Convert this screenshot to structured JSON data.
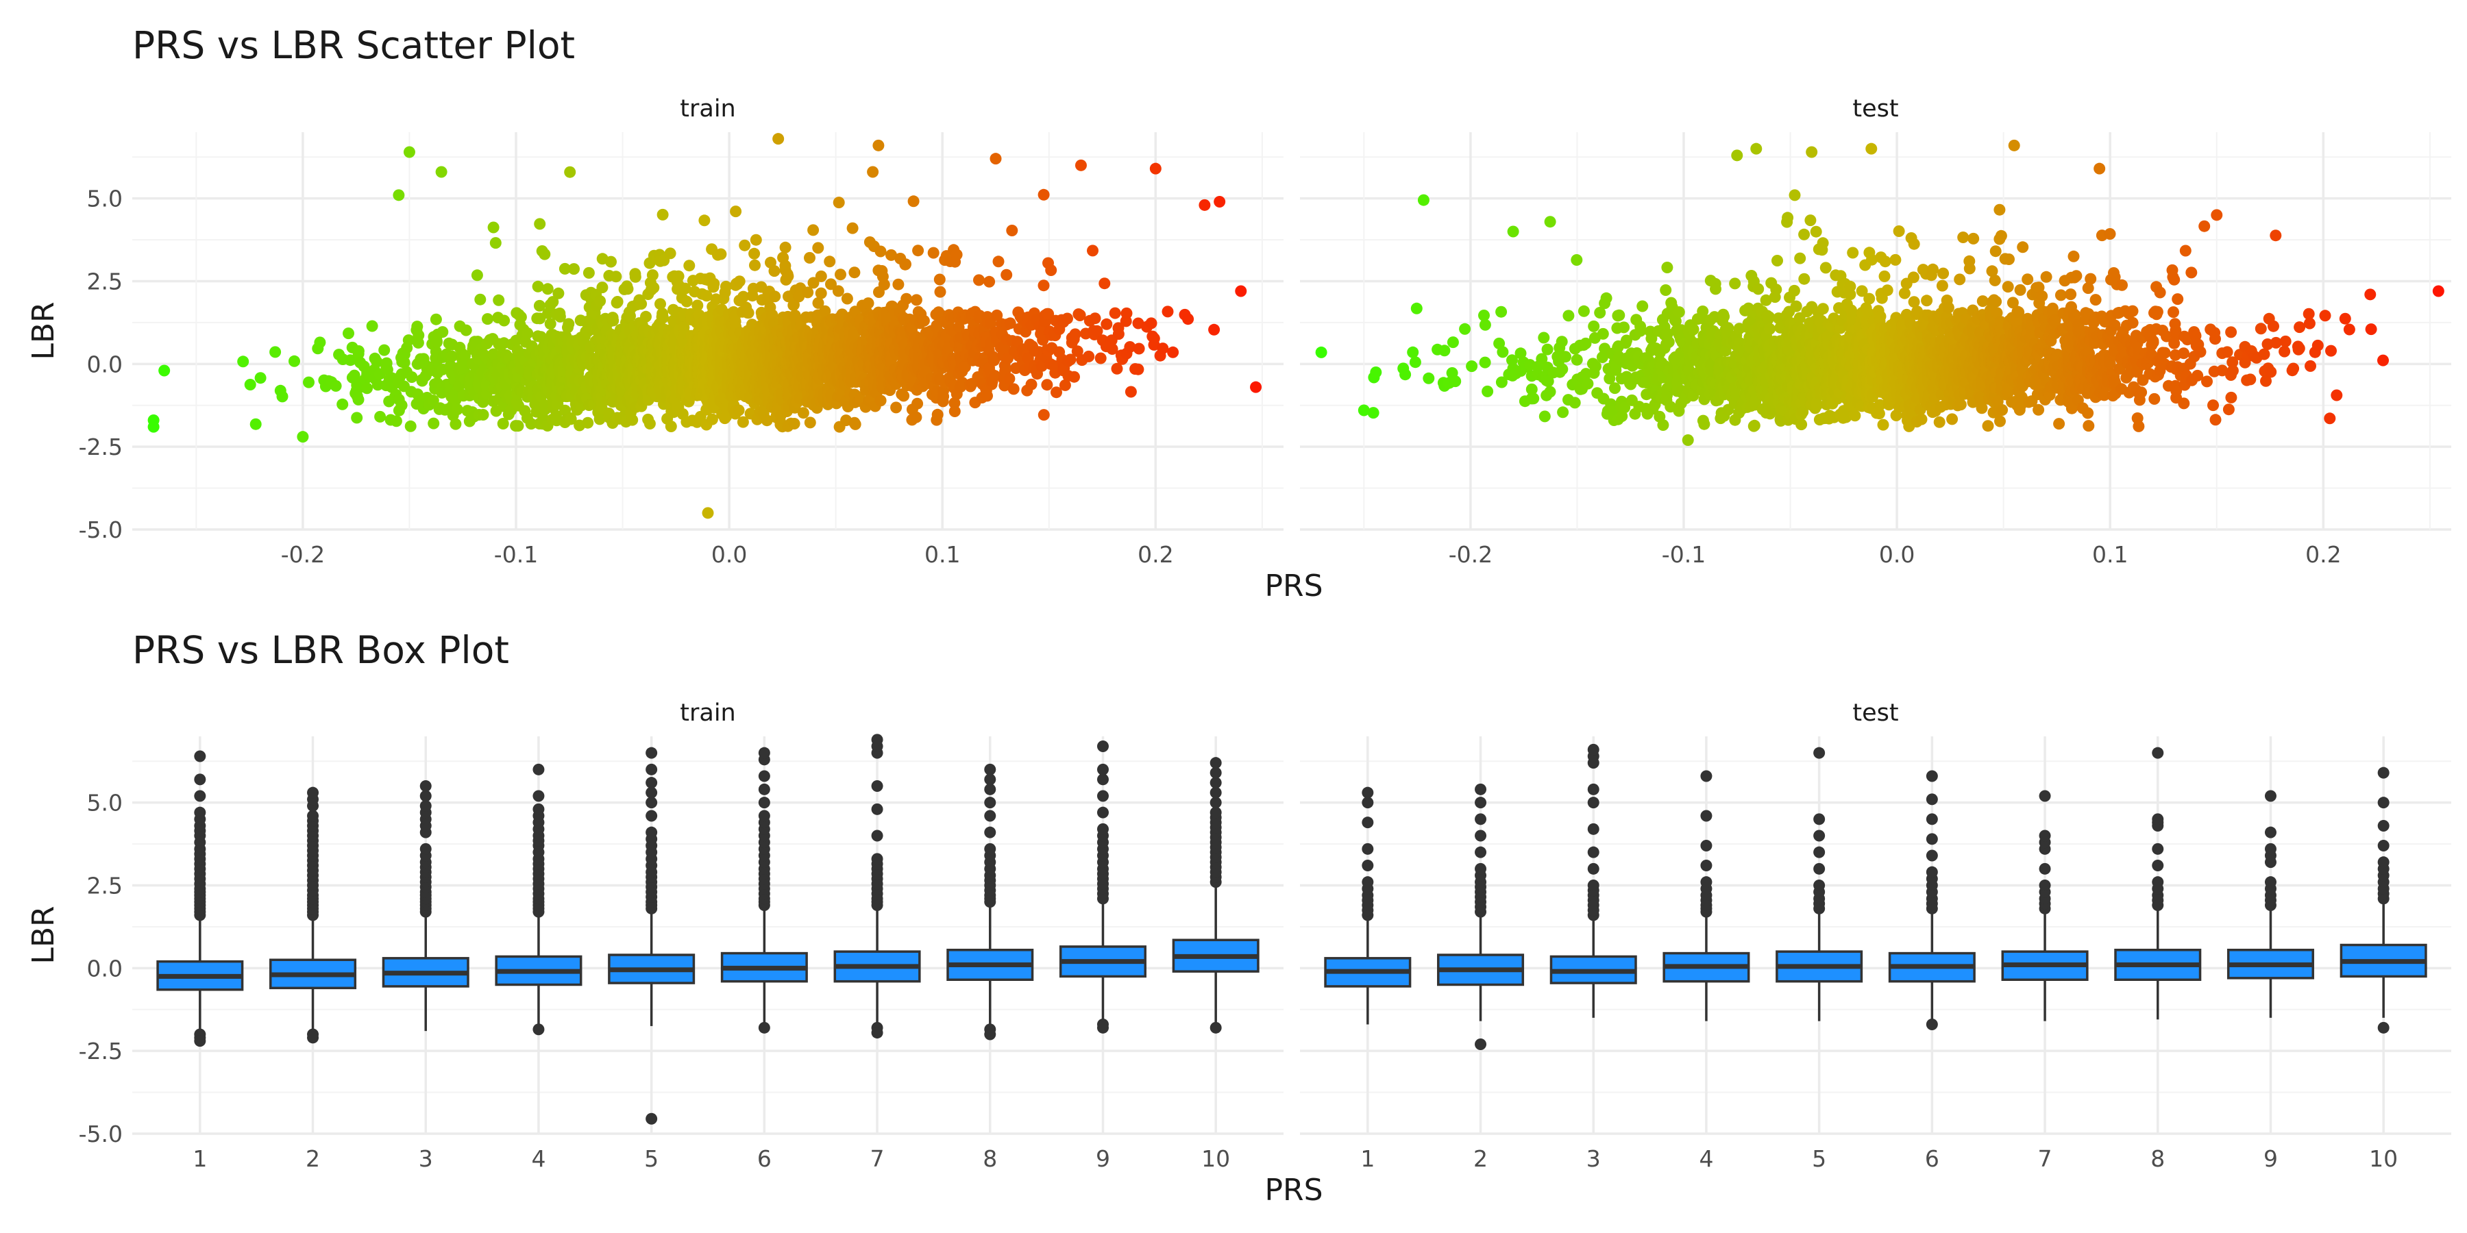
{
  "chart_data": [
    {
      "type": "scatter",
      "title": "PRS vs LBR Scatter Plot",
      "xlabel": "PRS",
      "ylabel": "LBR",
      "facets": [
        "train",
        "test"
      ],
      "xlim": [
        -0.28,
        0.26
      ],
      "ylim": [
        -5.0,
        7.0
      ],
      "x_ticks": [
        -0.2,
        -0.1,
        0.0,
        0.1,
        0.2
      ],
      "x_tick_labels": [
        "-0.2",
        "-0.1",
        "0.0",
        "0.1",
        "0.2"
      ],
      "y_ticks": [
        -5.0,
        -2.5,
        0.0,
        2.5,
        5.0
      ],
      "y_tick_labels": [
        "-5.0",
        "-2.5",
        "0.0",
        "2.5",
        "5.0"
      ],
      "grid": true,
      "legend": "none",
      "color_scale": {
        "low": "#33ff00",
        "mid": "#c8b400",
        "high": "#ff1100",
        "mapped_to": "PRS"
      },
      "train": {
        "x_range": [
          -0.27,
          0.25
        ],
        "cloud_trend": {
          "x": [
            -0.26,
            -0.2,
            -0.1,
            0.0,
            0.1,
            0.2
          ],
          "y_center": [
            -0.5,
            -0.4,
            -0.2,
            0.0,
            0.3,
            0.9
          ]
        },
        "highlight_points": [
          {
            "x": -0.27,
            "y": -1.7
          },
          {
            "x": -0.27,
            "y": -1.9
          },
          {
            "x": -0.265,
            "y": -0.2
          },
          {
            "x": -0.15,
            "y": 6.4
          },
          {
            "x": -0.135,
            "y": 5.8
          },
          {
            "x": -0.155,
            "y": 5.1
          },
          {
            "x": -0.2,
            "y": -2.2
          },
          {
            "x": -0.01,
            "y": -4.5
          },
          {
            "x": 0.023,
            "y": 6.8
          },
          {
            "x": 0.07,
            "y": 6.6
          },
          {
            "x": 0.125,
            "y": 6.2
          },
          {
            "x": 0.165,
            "y": 6.0
          },
          {
            "x": 0.2,
            "y": 5.9
          },
          {
            "x": 0.223,
            "y": 4.8
          },
          {
            "x": 0.23,
            "y": 4.9
          },
          {
            "x": 0.24,
            "y": 2.2
          },
          {
            "x": 0.247,
            "y": -0.7
          }
        ]
      },
      "test": {
        "x_range": [
          -0.27,
          0.26
        ],
        "cloud_trend": {
          "x": [
            -0.26,
            -0.2,
            -0.1,
            0.0,
            0.1,
            0.2
          ],
          "y_center": [
            -0.3,
            -0.3,
            -0.1,
            0.0,
            0.2,
            0.5
          ]
        },
        "highlight_points": [
          {
            "x": -0.27,
            "y": 0.35
          },
          {
            "x": -0.25,
            "y": -1.4
          },
          {
            "x": -0.222,
            "y": 4.95
          },
          {
            "x": -0.18,
            "y": 4.0
          },
          {
            "x": -0.098,
            "y": -2.3
          },
          {
            "x": -0.066,
            "y": 6.5
          },
          {
            "x": -0.075,
            "y": 6.3
          },
          {
            "x": -0.04,
            "y": 6.4
          },
          {
            "x": -0.012,
            "y": 6.5
          },
          {
            "x": 0.055,
            "y": 6.6
          },
          {
            "x": 0.095,
            "y": 5.9
          },
          {
            "x": 0.15,
            "y": 4.5
          },
          {
            "x": 0.222,
            "y": 2.1
          },
          {
            "x": 0.254,
            "y": 2.2
          }
        ]
      }
    },
    {
      "type": "box",
      "title": "PRS vs LBR Box Plot",
      "xlabel": "PRS",
      "ylabel": "LBR",
      "facets": [
        "train",
        "test"
      ],
      "categories": [
        "1",
        "2",
        "3",
        "4",
        "5",
        "6",
        "7",
        "8",
        "9",
        "10"
      ],
      "ylim": [
        -5.0,
        7.0
      ],
      "y_ticks": [
        -5.0,
        -2.5,
        0.0,
        2.5,
        5.0
      ],
      "y_tick_labels": [
        "-5.0",
        "-2.5",
        "0.0",
        "2.5",
        "5.0"
      ],
      "grid": true,
      "box_color": "#1e90ff",
      "train": [
        {
          "q1": -0.65,
          "median": -0.25,
          "q3": 0.2,
          "whisker_low": -1.9,
          "whisker_high": 1.45,
          "outliers_low": [
            -2.0,
            -2.1,
            -2.2
          ],
          "outliers_high": [
            1.6,
            1.8,
            2.0,
            2.2,
            2.4,
            2.7,
            3.0,
            3.3,
            3.6,
            4.0,
            4.3,
            4.7,
            5.2,
            5.7,
            6.4
          ]
        },
        {
          "q1": -0.6,
          "median": -0.2,
          "q3": 0.25,
          "whisker_low": -1.9,
          "whisker_high": 1.5,
          "outliers_low": [
            -2.0,
            -2.1
          ],
          "outliers_high": [
            1.6,
            1.8,
            2.0,
            2.2,
            2.5,
            2.8,
            3.1,
            3.4,
            3.7,
            4.0,
            4.3,
            4.6,
            4.9,
            5.1,
            5.3
          ]
        },
        {
          "q1": -0.55,
          "median": -0.15,
          "q3": 0.3,
          "whisker_low": -1.9,
          "whisker_high": 1.55,
          "outliers_low": [],
          "outliers_high": [
            1.7,
            1.9,
            2.1,
            2.3,
            2.6,
            2.9,
            3.2,
            3.6,
            4.1,
            4.5,
            4.9,
            5.2,
            5.5
          ]
        },
        {
          "q1": -0.5,
          "median": -0.1,
          "q3": 0.35,
          "whisker_low": -1.75,
          "whisker_high": 1.6,
          "outliers_low": [
            -1.85
          ],
          "outliers_high": [
            1.7,
            1.9,
            2.1,
            2.4,
            2.7,
            3.0,
            3.3,
            3.7,
            4.0,
            4.4,
            4.8,
            5.2,
            6.0
          ]
        },
        {
          "q1": -0.45,
          "median": -0.05,
          "q3": 0.4,
          "whisker_low": -1.75,
          "whisker_high": 1.7,
          "outliers_low": [
            -4.55
          ],
          "outliers_high": [
            1.8,
            2.0,
            2.3,
            2.6,
            2.9,
            3.3,
            3.7,
            4.1,
            4.6,
            5.0,
            5.3,
            5.6,
            6.0,
            6.5
          ]
        },
        {
          "q1": -0.4,
          "median": 0.0,
          "q3": 0.45,
          "whisker_low": -1.7,
          "whisker_high": 1.75,
          "outliers_low": [
            -1.8
          ],
          "outliers_high": [
            1.9,
            2.1,
            2.4,
            2.7,
            3.0,
            3.4,
            3.8,
            4.2,
            4.6,
            5.0,
            5.4,
            5.8,
            6.3,
            6.5
          ]
        },
        {
          "q1": -0.4,
          "median": 0.05,
          "q3": 0.5,
          "whisker_low": -1.7,
          "whisker_high": 1.8,
          "outliers_low": [
            -1.8,
            -1.95
          ],
          "outliers_high": [
            1.9,
            2.1,
            2.4,
            2.7,
            3.0,
            3.3,
            4.0,
            4.8,
            5.5,
            6.5,
            6.7,
            6.9
          ]
        },
        {
          "q1": -0.35,
          "median": 0.1,
          "q3": 0.55,
          "whisker_low": -1.75,
          "whisker_high": 1.85,
          "outliers_low": [
            -1.85,
            -2.0
          ],
          "outliers_high": [
            2.0,
            2.2,
            2.5,
            2.8,
            3.2,
            3.6,
            4.1,
            4.6,
            5.0,
            5.4,
            5.7,
            6.0
          ]
        },
        {
          "q1": -0.25,
          "median": 0.2,
          "q3": 0.65,
          "whisker_low": -1.6,
          "whisker_high": 2.0,
          "outliers_low": [
            -1.7,
            -1.8
          ],
          "outliers_high": [
            2.1,
            2.4,
            2.7,
            3.0,
            3.4,
            3.8,
            4.2,
            4.7,
            5.2,
            5.7,
            6.0,
            6.7
          ]
        },
        {
          "q1": -0.1,
          "median": 0.35,
          "q3": 0.85,
          "whisker_low": -1.7,
          "whisker_high": 2.45,
          "outliers_low": [
            -1.8
          ],
          "outliers_high": [
            2.6,
            2.9,
            3.2,
            3.5,
            3.8,
            4.1,
            4.4,
            4.7,
            5.0,
            5.3,
            5.6,
            5.9,
            6.2
          ]
        }
      ],
      "test": [
        {
          "q1": -0.55,
          "median": -0.1,
          "q3": 0.3,
          "whisker_low": -1.7,
          "whisker_high": 1.5,
          "outliers_low": [],
          "outliers_high": [
            1.6,
            1.9,
            2.2,
            2.6,
            3.1,
            3.6,
            4.4,
            5.0,
            5.3
          ]
        },
        {
          "q1": -0.5,
          "median": -0.05,
          "q3": 0.4,
          "whisker_low": -1.6,
          "whisker_high": 1.6,
          "outliers_low": [
            -2.3
          ],
          "outliers_high": [
            1.7,
            2.0,
            2.3,
            2.6,
            3.0,
            3.5,
            4.0,
            4.5,
            5.0,
            5.4
          ]
        },
        {
          "q1": -0.45,
          "median": -0.1,
          "q3": 0.35,
          "whisker_low": -1.5,
          "whisker_high": 1.5,
          "outliers_low": [],
          "outliers_high": [
            1.6,
            1.9,
            2.2,
            2.5,
            3.0,
            3.5,
            4.2,
            5.0,
            5.4,
            6.2,
            6.4,
            6.6
          ]
        },
        {
          "q1": -0.4,
          "median": 0.05,
          "q3": 0.45,
          "whisker_low": -1.6,
          "whisker_high": 1.6,
          "outliers_low": [],
          "outliers_high": [
            1.7,
            1.9,
            2.2,
            2.6,
            3.1,
            3.7,
            4.6,
            5.8
          ]
        },
        {
          "q1": -0.4,
          "median": 0.05,
          "q3": 0.5,
          "whisker_low": -1.6,
          "whisker_high": 1.7,
          "outliers_low": [],
          "outliers_high": [
            1.8,
            2.1,
            2.5,
            3.0,
            3.5,
            4.0,
            4.5,
            6.5
          ]
        },
        {
          "q1": -0.4,
          "median": 0.05,
          "q3": 0.45,
          "whisker_low": -1.6,
          "whisker_high": 1.7,
          "outliers_low": [
            -1.7
          ],
          "outliers_high": [
            1.8,
            2.1,
            2.5,
            2.9,
            3.4,
            3.9,
            4.5,
            5.1,
            5.8
          ]
        },
        {
          "q1": -0.35,
          "median": 0.1,
          "q3": 0.5,
          "whisker_low": -1.6,
          "whisker_high": 1.7,
          "outliers_low": [],
          "outliers_high": [
            1.8,
            2.1,
            2.5,
            3.0,
            3.6,
            4.0,
            5.2
          ]
        },
        {
          "q1": -0.35,
          "median": 0.1,
          "q3": 0.55,
          "whisker_low": -1.55,
          "whisker_high": 1.75,
          "outliers_low": [],
          "outliers_high": [
            1.9,
            2.2,
            2.6,
            3.1,
            3.6,
            4.3,
            4.5,
            6.5
          ]
        },
        {
          "q1": -0.3,
          "median": 0.1,
          "q3": 0.55,
          "whisker_low": -1.5,
          "whisker_high": 1.8,
          "outliers_low": [],
          "outliers_high": [
            1.9,
            2.2,
            2.6,
            3.2,
            3.6,
            4.1,
            5.2
          ]
        },
        {
          "q1": -0.25,
          "median": 0.2,
          "q3": 0.7,
          "whisker_low": -1.5,
          "whisker_high": 2.0,
          "outliers_low": [
            -1.8
          ],
          "outliers_high": [
            2.1,
            2.4,
            2.8,
            3.2,
            3.7,
            4.3,
            5.0,
            5.9
          ]
        }
      ]
    }
  ]
}
